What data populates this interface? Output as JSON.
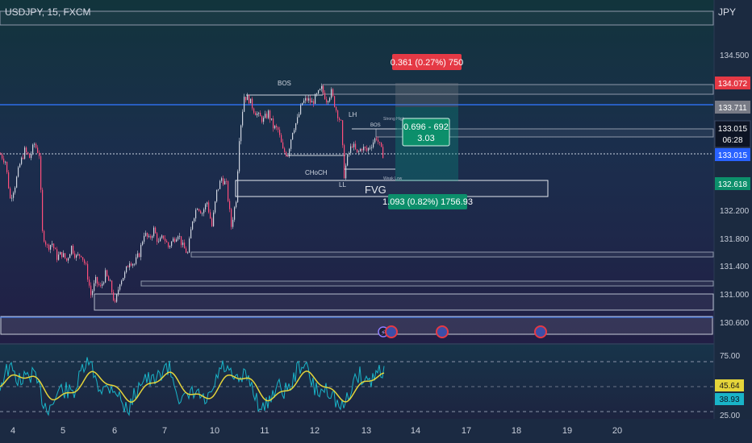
{
  "header": {
    "symbol_line": "USDJPY, 15, FXCM",
    "currency": "JPY"
  },
  "chart_data": [
    {
      "type": "candlestick",
      "price_axis": {
        "ticks": [
          "134.500",
          "132.200",
          "131.800",
          "131.400",
          "131.000",
          "130.600"
        ],
        "labels": [
          {
            "text": "134.072",
            "color": "#e53945"
          },
          {
            "text": "133.711",
            "color": "#787b86"
          },
          {
            "text": "133.015",
            "color": "#ffffff"
          },
          {
            "text": "06:28",
            "color": "#ffffff"
          },
          {
            "text": "133.015",
            "color": "#2962ff"
          },
          {
            "text": "132.618",
            "color": "#0c8f6b"
          }
        ]
      },
      "time_axis": {
        "ticks": [
          "4",
          "5",
          "6",
          "7",
          "10",
          "11",
          "12",
          "13",
          "14",
          "17",
          "18",
          "19",
          "20"
        ]
      },
      "annotations": {
        "bos1": "BOS",
        "bos2": "BOS",
        "lh": "LH",
        "ll": "LL",
        "choch": "CHoCH",
        "fvg": "FVG",
        "strong_high": "Strong High",
        "weak_low": "Weak Low",
        "short_risk": "0.361 (0.27%) 750",
        "short_target": "1.093 (0.82%) 1756.93",
        "rr_line1": "0.696 - 692",
        "rr_line2": "3.03"
      },
      "series": [
        {
          "points": [
            [
              0,
              133.05
            ],
            [
              6,
              132.95
            ],
            [
              12,
              132.4
            ],
            [
              18,
              132.6
            ],
            [
              24,
              132.9
            ],
            [
              30,
              133.1
            ],
            [
              36,
              133.0
            ],
            [
              42,
              133.2
            ],
            [
              48,
              133.05
            ],
            [
              52,
              131.9
            ],
            [
              58,
              131.7
            ],
            [
              64,
              131.75
            ],
            [
              70,
              131.55
            ],
            [
              76,
              131.6
            ],
            [
              82,
              131.5
            ],
            [
              88,
              131.7
            ],
            [
              94,
              131.55
            ],
            [
              100,
              131.6
            ],
            [
              106,
              131.4
            ],
            [
              112,
              131.0
            ],
            [
              118,
              131.2
            ],
            [
              124,
              131.1
            ],
            [
              130,
              131.3
            ],
            [
              136,
              131.15
            ],
            [
              142,
              130.85
            ],
            [
              148,
              131.2
            ],
            [
              154,
              131.3
            ],
            [
              160,
              131.5
            ],
            [
              166,
              131.45
            ],
            [
              172,
              131.6
            ],
            [
              178,
              131.9
            ],
            [
              184,
              131.8
            ],
            [
              190,
              131.95
            ],
            [
              196,
              131.75
            ],
            [
              202,
              131.85
            ],
            [
              208,
              131.7
            ],
            [
              214,
              131.8
            ],
            [
              220,
              131.9
            ],
            [
              226,
              131.7
            ],
            [
              232,
              131.6
            ],
            [
              238,
              132.1
            ],
            [
              244,
              132.3
            ],
            [
              250,
              132.2
            ],
            [
              256,
              132.35
            ],
            [
              262,
              132.0
            ],
            [
              268,
              132.5
            ],
            [
              274,
              132.7
            ],
            [
              280,
              132.6
            ],
            [
              286,
              132.0
            ],
            [
              292,
              132.4
            ],
            [
              296,
              133.3
            ],
            [
              302,
              133.9
            ],
            [
              308,
              133.85
            ],
            [
              314,
              133.7
            ],
            [
              320,
              133.6
            ],
            [
              326,
              133.55
            ],
            [
              332,
              133.65
            ],
            [
              338,
              133.45
            ],
            [
              344,
              133.4
            ],
            [
              350,
              133.1
            ],
            [
              356,
              133.05
            ],
            [
              362,
              133.4
            ],
            [
              368,
              133.55
            ],
            [
              374,
              133.8
            ],
            [
              380,
              133.85
            ],
            [
              386,
              133.8
            ],
            [
              392,
              133.9
            ],
            [
              398,
              134.0
            ],
            [
              404,
              133.85
            ],
            [
              410,
              133.95
            ],
            [
              416,
              133.7
            ],
            [
              422,
              133.5
            ],
            [
              426,
              132.75
            ],
            [
              430,
              133.0
            ],
            [
              436,
              133.2
            ],
            [
              442,
              133.05
            ],
            [
              448,
              133.15
            ],
            [
              454,
              133.1
            ],
            [
              460,
              133.2
            ],
            [
              466,
              133.3
            ],
            [
              472,
              133.1
            ],
            [
              476,
              133.0
            ]
          ]
        }
      ]
    },
    {
      "type": "line",
      "oscillator_axis": {
        "ticks": [
          "75.00",
          "25.00"
        ]
      },
      "values": {
        "yellow": "45.64",
        "teal": "38.93"
      }
    }
  ]
}
